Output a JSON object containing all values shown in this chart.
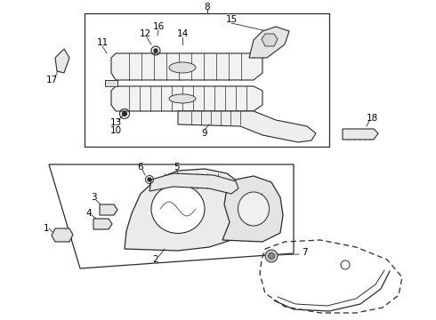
{
  "bg_color": "#ffffff",
  "line_color": "#2a2a2a",
  "label_color": "#000000",
  "label_fontsize": 7.5,
  "fig_width": 4.9,
  "fig_height": 3.6,
  "dpi": 100
}
